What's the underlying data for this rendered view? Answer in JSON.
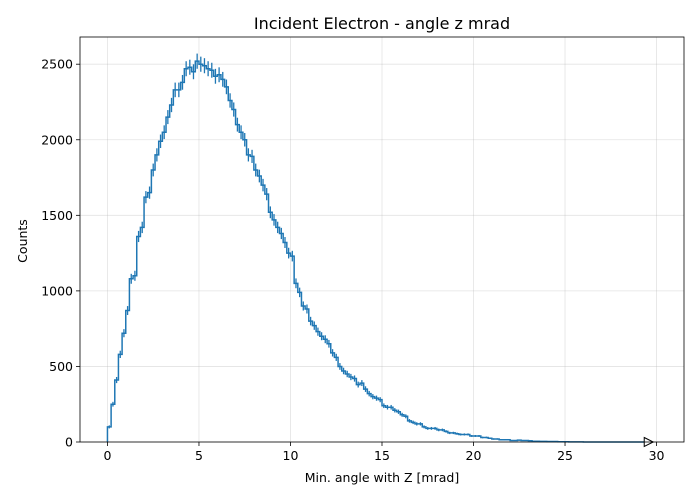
{
  "chart_data": {
    "type": "histogram",
    "title": "Incident Electron - angle z mrad",
    "xlabel": "Min. angle with Z [mrad]",
    "ylabel": "Counts",
    "xlim": [
      -1.5,
      31.5
    ],
    "ylim": [
      0,
      2680
    ],
    "xticks": [
      0,
      5,
      10,
      15,
      20,
      25,
      30
    ],
    "yticks": [
      0,
      500,
      1000,
      1500,
      2000,
      2500
    ],
    "grid": true,
    "bin_width": 0.2,
    "x_start": 0,
    "color": "#1f77b4",
    "overflow_marker": "triangle-right",
    "values": [
      100,
      250,
      410,
      580,
      720,
      870,
      1080,
      1100,
      1360,
      1420,
      1620,
      1650,
      1800,
      1900,
      1990,
      2050,
      2150,
      2230,
      2330,
      2330,
      2380,
      2470,
      2480,
      2450,
      2520,
      2500,
      2490,
      2470,
      2460,
      2420,
      2430,
      2400,
      2350,
      2260,
      2200,
      2100,
      2050,
      2000,
      1900,
      1890,
      1800,
      1760,
      1700,
      1640,
      1520,
      1470,
      1420,
      1380,
      1320,
      1250,
      1230,
      1050,
      990,
      900,
      880,
      800,
      770,
      730,
      700,
      680,
      650,
      590,
      560,
      500,
      470,
      450,
      430,
      420,
      380,
      390,
      350,
      320,
      300,
      290,
      280,
      240,
      230,
      230,
      210,
      200,
      180,
      170,
      140,
      130,
      120,
      120,
      100,
      90,
      90,
      90,
      80,
      80,
      70,
      60,
      60,
      55,
      50,
      50,
      50,
      40,
      40,
      40,
      30,
      30,
      25,
      20,
      20,
      15,
      15,
      15,
      10,
      10,
      12,
      10,
      10,
      8,
      5,
      5,
      4,
      4,
      3,
      3,
      3,
      2,
      2,
      2,
      1,
      1,
      1,
      1,
      0,
      0,
      0,
      0,
      0,
      0,
      0,
      0,
      0,
      0,
      0,
      0,
      0,
      0,
      0,
      0,
      0,
      0
    ]
  }
}
